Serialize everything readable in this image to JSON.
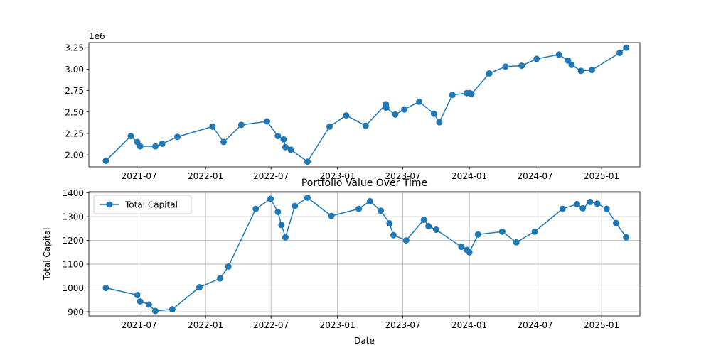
{
  "chart_data": [
    {
      "type": "line",
      "title": "",
      "xlabel": "",
      "ylabel": "",
      "y_offset_text": "1e6",
      "grid": false,
      "legend": null,
      "xlim": [
        "2021-02-12",
        "2025-04-17"
      ],
      "ylim": [
        1860000,
        3310000
      ],
      "x_ticks": [
        "2021-07-01",
        "2022-01-01",
        "2022-07-01",
        "2023-01-01",
        "2023-07-01",
        "2024-01-01",
        "2024-07-01",
        "2025-01-01"
      ],
      "x_tick_labels": [
        "2021-07",
        "2022-01",
        "2022-07",
        "2023-01",
        "2023-07",
        "2024-01",
        "2024-07",
        "2025-01"
      ],
      "y_ticks": [
        2000000,
        2250000,
        2500000,
        2750000,
        3000000,
        3250000
      ],
      "y_tick_labels": [
        "2.00",
        "2.25",
        "2.50",
        "2.75",
        "3.00",
        "3.25"
      ],
      "series": [
        {
          "color": "#1f77b4",
          "marker": "circle",
          "x": [
            "2021-03-31",
            "2021-06-08",
            "2021-06-26",
            "2021-07-04",
            "2021-08-15",
            "2021-09-03",
            "2021-10-15",
            "2022-01-20",
            "2022-02-20",
            "2022-04-10",
            "2022-06-20",
            "2022-07-20",
            "2022-08-05",
            "2022-08-10",
            "2022-08-25",
            "2022-10-10",
            "2022-12-10",
            "2023-01-25",
            "2023-03-20",
            "2023-05-15",
            "2023-05-16",
            "2023-06-10",
            "2023-07-05",
            "2023-08-15",
            "2023-09-25",
            "2023-10-10",
            "2023-11-15",
            "2023-12-25",
            "2024-01-02",
            "2024-01-07",
            "2024-02-25",
            "2024-04-10",
            "2024-05-25",
            "2024-07-05",
            "2024-09-05",
            "2024-09-30",
            "2024-10-10",
            "2024-11-05",
            "2024-12-05",
            "2025-02-20",
            "2025-03-10"
          ],
          "y": [
            1930000,
            2220000,
            2150000,
            2100000,
            2100000,
            2130000,
            2210000,
            2330000,
            2150000,
            2350000,
            2390000,
            2220000,
            2180000,
            2090000,
            2060000,
            1920000,
            2330000,
            2460000,
            2340000,
            2590000,
            2550000,
            2470000,
            2530000,
            2620000,
            2480000,
            2380000,
            2700000,
            2720000,
            2720000,
            2710000,
            2950000,
            3030000,
            3040000,
            3120000,
            3170000,
            3100000,
            3050000,
            2980000,
            2990000,
            3190000,
            3250000
          ]
        }
      ]
    },
    {
      "type": "line",
      "title": "Portfolio Value Over Time",
      "xlabel": "Date",
      "ylabel": "Total Capital",
      "grid": true,
      "legend": "upper-left",
      "xlim": [
        "2021-02-12",
        "2025-04-17"
      ],
      "ylim": [
        882,
        1405
      ],
      "x_ticks": [
        "2021-07-01",
        "2022-01-01",
        "2022-07-01",
        "2023-01-01",
        "2023-07-01",
        "2024-01-01",
        "2024-07-01",
        "2025-01-01"
      ],
      "x_tick_labels": [
        "2021-07",
        "2022-01",
        "2022-07",
        "2023-01",
        "2023-07",
        "2024-01",
        "2024-07",
        "2025-01"
      ],
      "y_ticks": [
        900,
        1000,
        1100,
        1200,
        1300,
        1400
      ],
      "y_tick_labels": [
        "900",
        "1000",
        "1100",
        "1200",
        "1300",
        "1400"
      ],
      "series": [
        {
          "name": "Total Capital",
          "color": "#1f77b4",
          "marker": "circle",
          "x": [
            "2021-03-31",
            "2021-06-26",
            "2021-07-04",
            "2021-07-28",
            "2021-08-15",
            "2021-10-01",
            "2021-12-15",
            "2022-02-10",
            "2022-03-05",
            "2022-05-20",
            "2022-06-30",
            "2022-07-20",
            "2022-07-30",
            "2022-08-10",
            "2022-09-05",
            "2022-10-10",
            "2022-12-15",
            "2023-03-01",
            "2023-04-01",
            "2023-05-01",
            "2023-05-25",
            "2023-06-05",
            "2023-07-10",
            "2023-08-28",
            "2023-09-10",
            "2023-10-01",
            "2023-12-10",
            "2023-12-25",
            "2024-01-01",
            "2024-01-25",
            "2024-04-01",
            "2024-05-10",
            "2024-06-30",
            "2024-09-15",
            "2024-10-25",
            "2024-11-10",
            "2024-11-30",
            "2024-12-20",
            "2025-01-15",
            "2025-02-10",
            "2025-03-10"
          ],
          "y": [
            1000,
            970,
            943,
            930,
            903,
            910,
            1003,
            1040,
            1090,
            1333,
            1375,
            1320,
            1265,
            1213,
            1345,
            1380,
            1303,
            1333,
            1365,
            1325,
            1272,
            1222,
            1200,
            1287,
            1260,
            1245,
            1173,
            1160,
            1150,
            1225,
            1237,
            1192,
            1237,
            1333,
            1353,
            1335,
            1362,
            1355,
            1333,
            1273,
            1213
          ]
        }
      ]
    }
  ]
}
